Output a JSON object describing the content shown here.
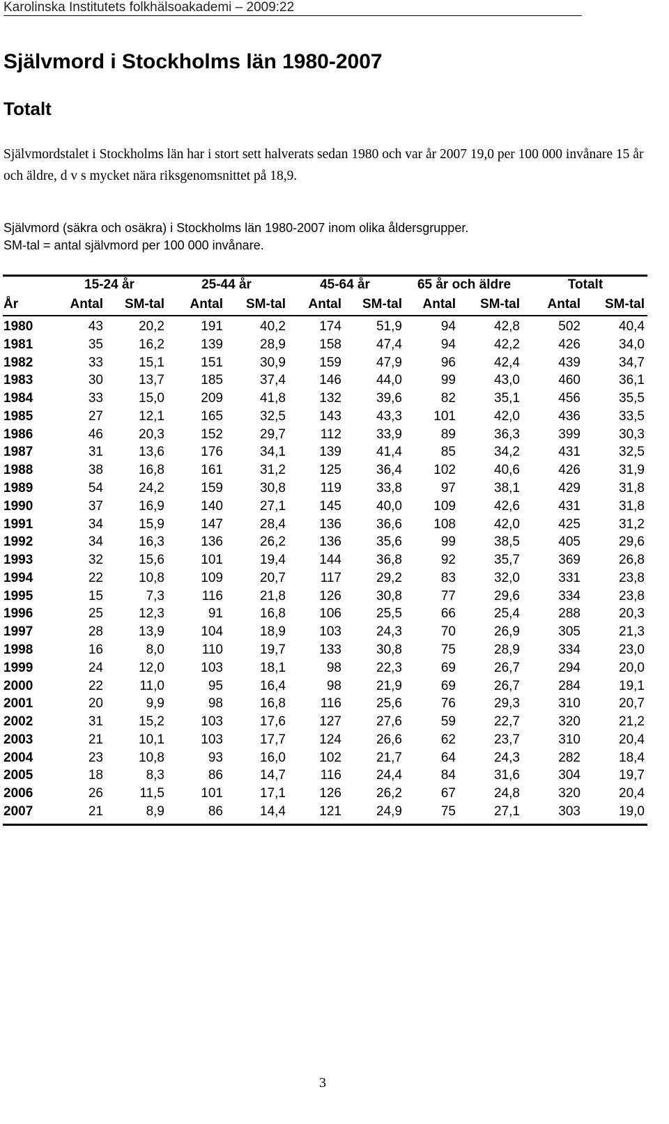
{
  "header": "Karolinska Institutets folkhälsoakademi – 2009:22",
  "title": "Självmord i Stockholms län 1980-2007",
  "subtitle": "Totalt",
  "paragraph": "Självmordstalet i Stockholms län har i stort sett halverats sedan 1980 och var år 2007 19,0 per 100 000 invånare 15 år och äldre, d v s mycket nära riksgenomsnittet på 18,9.",
  "caption": [
    "Självmord (säkra och osäkra) i Stockholms län 1980-2007 inom olika åldersgrupper.",
    "SM-tal = antal självmord per 100 000 invånare."
  ],
  "table": {
    "groups": [
      "15-24 år",
      "25-44 år",
      "45-64 år",
      "65 år och äldre",
      "Totalt"
    ],
    "columns": [
      "År",
      "Antal",
      "SM-tal",
      "Antal",
      "SM-tal",
      "Antal",
      "SM-tal",
      "Antal",
      "SM-tal",
      "Antal",
      "SM-tal"
    ],
    "rows": [
      [
        "1980",
        "43",
        "20,2",
        "191",
        "40,2",
        "174",
        "51,9",
        "94",
        "42,8",
        "502",
        "40,4"
      ],
      [
        "1981",
        "35",
        "16,2",
        "139",
        "28,9",
        "158",
        "47,4",
        "94",
        "42,2",
        "426",
        "34,0"
      ],
      [
        "1982",
        "33",
        "15,1",
        "151",
        "30,9",
        "159",
        "47,9",
        "96",
        "42,4",
        "439",
        "34,7"
      ],
      [
        "1983",
        "30",
        "13,7",
        "185",
        "37,4",
        "146",
        "44,0",
        "99",
        "43,0",
        "460",
        "36,1"
      ],
      [
        "1984",
        "33",
        "15,0",
        "209",
        "41,8",
        "132",
        "39,6",
        "82",
        "35,1",
        "456",
        "35,5"
      ],
      [
        "1985",
        "27",
        "12,1",
        "165",
        "32,5",
        "143",
        "43,3",
        "101",
        "42,0",
        "436",
        "33,5"
      ],
      [
        "1986",
        "46",
        "20,3",
        "152",
        "29,7",
        "112",
        "33,9",
        "89",
        "36,3",
        "399",
        "30,3"
      ],
      [
        "1987",
        "31",
        "13,6",
        "176",
        "34,1",
        "139",
        "41,4",
        "85",
        "34,2",
        "431",
        "32,5"
      ],
      [
        "1988",
        "38",
        "16,8",
        "161",
        "31,2",
        "125",
        "36,4",
        "102",
        "40,6",
        "426",
        "31,9"
      ],
      [
        "1989",
        "54",
        "24,2",
        "159",
        "30,8",
        "119",
        "33,8",
        "97",
        "38,1",
        "429",
        "31,8"
      ],
      [
        "1990",
        "37",
        "16,9",
        "140",
        "27,1",
        "145",
        "40,0",
        "109",
        "42,6",
        "431",
        "31,8"
      ],
      [
        "1991",
        "34",
        "15,9",
        "147",
        "28,4",
        "136",
        "36,6",
        "108",
        "42,0",
        "425",
        "31,2"
      ],
      [
        "1992",
        "34",
        "16,3",
        "136",
        "26,2",
        "136",
        "35,6",
        "99",
        "38,5",
        "405",
        "29,6"
      ],
      [
        "1993",
        "32",
        "15,6",
        "101",
        "19,4",
        "144",
        "36,8",
        "92",
        "35,7",
        "369",
        "26,8"
      ],
      [
        "1994",
        "22",
        "10,8",
        "109",
        "20,7",
        "117",
        "29,2",
        "83",
        "32,0",
        "331",
        "23,8"
      ],
      [
        "1995",
        "15",
        "7,3",
        "116",
        "21,8",
        "126",
        "30,8",
        "77",
        "29,6",
        "334",
        "23,8"
      ],
      [
        "1996",
        "25",
        "12,3",
        "91",
        "16,8",
        "106",
        "25,5",
        "66",
        "25,4",
        "288",
        "20,3"
      ],
      [
        "1997",
        "28",
        "13,9",
        "104",
        "18,9",
        "103",
        "24,3",
        "70",
        "26,9",
        "305",
        "21,3"
      ],
      [
        "1998",
        "16",
        "8,0",
        "110",
        "19,7",
        "133",
        "30,8",
        "75",
        "28,9",
        "334",
        "23,0"
      ],
      [
        "1999",
        "24",
        "12,0",
        "103",
        "18,1",
        "98",
        "22,3",
        "69",
        "26,7",
        "294",
        "20,0"
      ],
      [
        "2000",
        "22",
        "11,0",
        "95",
        "16,4",
        "98",
        "21,9",
        "69",
        "26,7",
        "284",
        "19,1"
      ],
      [
        "2001",
        "20",
        "9,9",
        "98",
        "16,8",
        "116",
        "25,6",
        "76",
        "29,3",
        "310",
        "20,7"
      ],
      [
        "2002",
        "31",
        "15,2",
        "103",
        "17,6",
        "127",
        "27,6",
        "59",
        "22,7",
        "320",
        "21,2"
      ],
      [
        "2003",
        "21",
        "10,1",
        "103",
        "17,7",
        "124",
        "26,6",
        "62",
        "23,7",
        "310",
        "20,4"
      ],
      [
        "2004",
        "23",
        "10,8",
        "93",
        "16,0",
        "102",
        "21,7",
        "64",
        "24,3",
        "282",
        "18,4"
      ],
      [
        "2005",
        "18",
        "8,3",
        "86",
        "14,7",
        "116",
        "24,4",
        "84",
        "31,6",
        "304",
        "19,7"
      ],
      [
        "2006",
        "26",
        "11,5",
        "101",
        "17,1",
        "126",
        "26,2",
        "67",
        "24,8",
        "320",
        "20,4"
      ],
      [
        "2007",
        "21",
        "8,9",
        "86",
        "14,4",
        "121",
        "24,9",
        "75",
        "27,1",
        "303",
        "19,0"
      ]
    ]
  },
  "page_number": "3"
}
